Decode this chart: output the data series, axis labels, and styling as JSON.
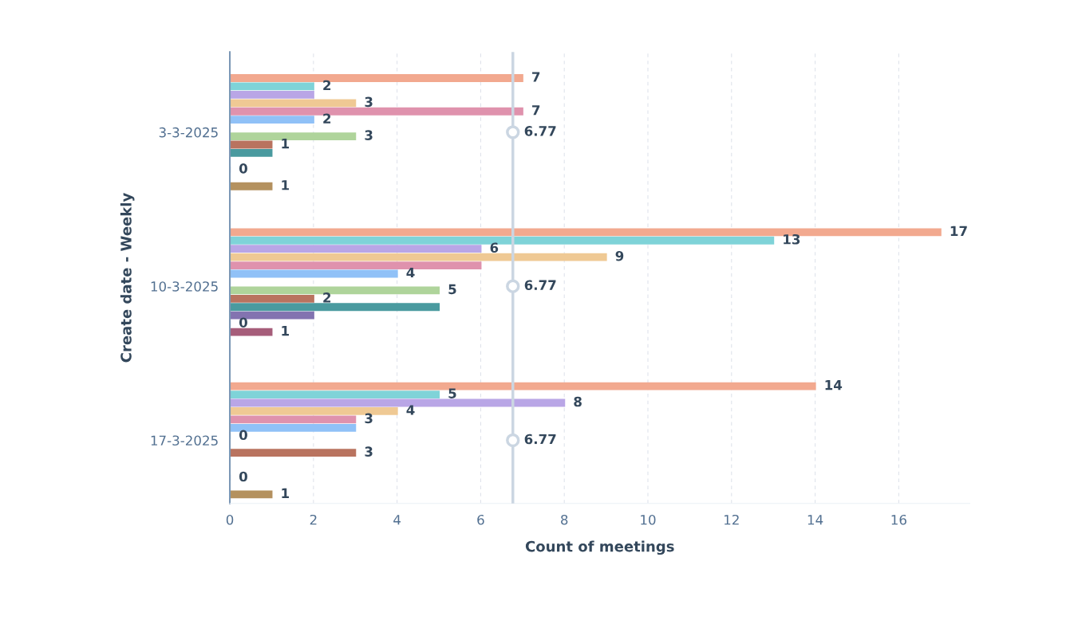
{
  "chart_data": {
    "type": "bar",
    "orientation": "horizontal",
    "xlabel": "Count of meetings",
    "ylabel": "Create date - Weekly",
    "categories": [
      "3-3-2025",
      "10-3-2025",
      "17-3-2025"
    ],
    "series": [
      {
        "color": "#f2a98f",
        "values": [
          7,
          17,
          14
        ],
        "value_labels": [
          "7",
          "17",
          "14"
        ]
      },
      {
        "color": "#7fd3d8",
        "values": [
          2,
          13,
          5
        ],
        "value_labels": [
          "2",
          "13",
          "5"
        ]
      },
      {
        "color": "#b9a6e6",
        "values": [
          2,
          6,
          8
        ],
        "value_labels": [
          null,
          "6",
          "8"
        ]
      },
      {
        "color": "#efc994",
        "values": [
          3,
          9,
          4
        ],
        "value_labels": [
          "3",
          "9",
          "4"
        ]
      },
      {
        "color": "#df92ad",
        "values": [
          7,
          6,
          3
        ],
        "value_labels": [
          "7",
          null,
          "3"
        ]
      },
      {
        "color": "#90c1f7",
        "values": [
          2,
          4,
          3
        ],
        "value_labels": [
          "2",
          "4",
          null
        ]
      },
      {
        "color": "#7f97b5",
        "values": [
          0,
          0,
          0
        ],
        "value_labels": [
          null,
          null,
          "0"
        ]
      },
      {
        "color": "#afd49b",
        "values": [
          3,
          5,
          null
        ],
        "value_labels": [
          "3",
          "5",
          null
        ]
      },
      {
        "color": "#b9735f",
        "values": [
          1,
          2,
          3
        ],
        "value_labels": [
          "1",
          "2",
          "3"
        ]
      },
      {
        "color": "#4a9a9f",
        "values": [
          1,
          5,
          null
        ],
        "value_labels": [
          null,
          null,
          null
        ]
      },
      {
        "color": "#8373b0",
        "values": [
          null,
          2,
          null
        ],
        "value_labels": [
          null,
          null,
          null
        ]
      },
      {
        "color": "#6b8bb0",
        "values": [
          0,
          0,
          0
        ],
        "value_labels": [
          "0",
          "0",
          "0"
        ]
      },
      {
        "color": "#a65d7a",
        "values": [
          null,
          1,
          null
        ],
        "value_labels": [
          null,
          "1",
          null
        ]
      },
      {
        "color": "#b4915f",
        "values": [
          1,
          null,
          1
        ],
        "value_labels": [
          "1",
          null,
          "1"
        ]
      }
    ],
    "xlim": [
      0,
      17.7
    ],
    "xticks": [
      0,
      2,
      4,
      6,
      8,
      10,
      12,
      14,
      16
    ],
    "grid": "x",
    "ref_lines": [
      {
        "axis": "x",
        "value": 6.77,
        "label": "6.77",
        "color": "#cbd6e2"
      }
    ]
  }
}
